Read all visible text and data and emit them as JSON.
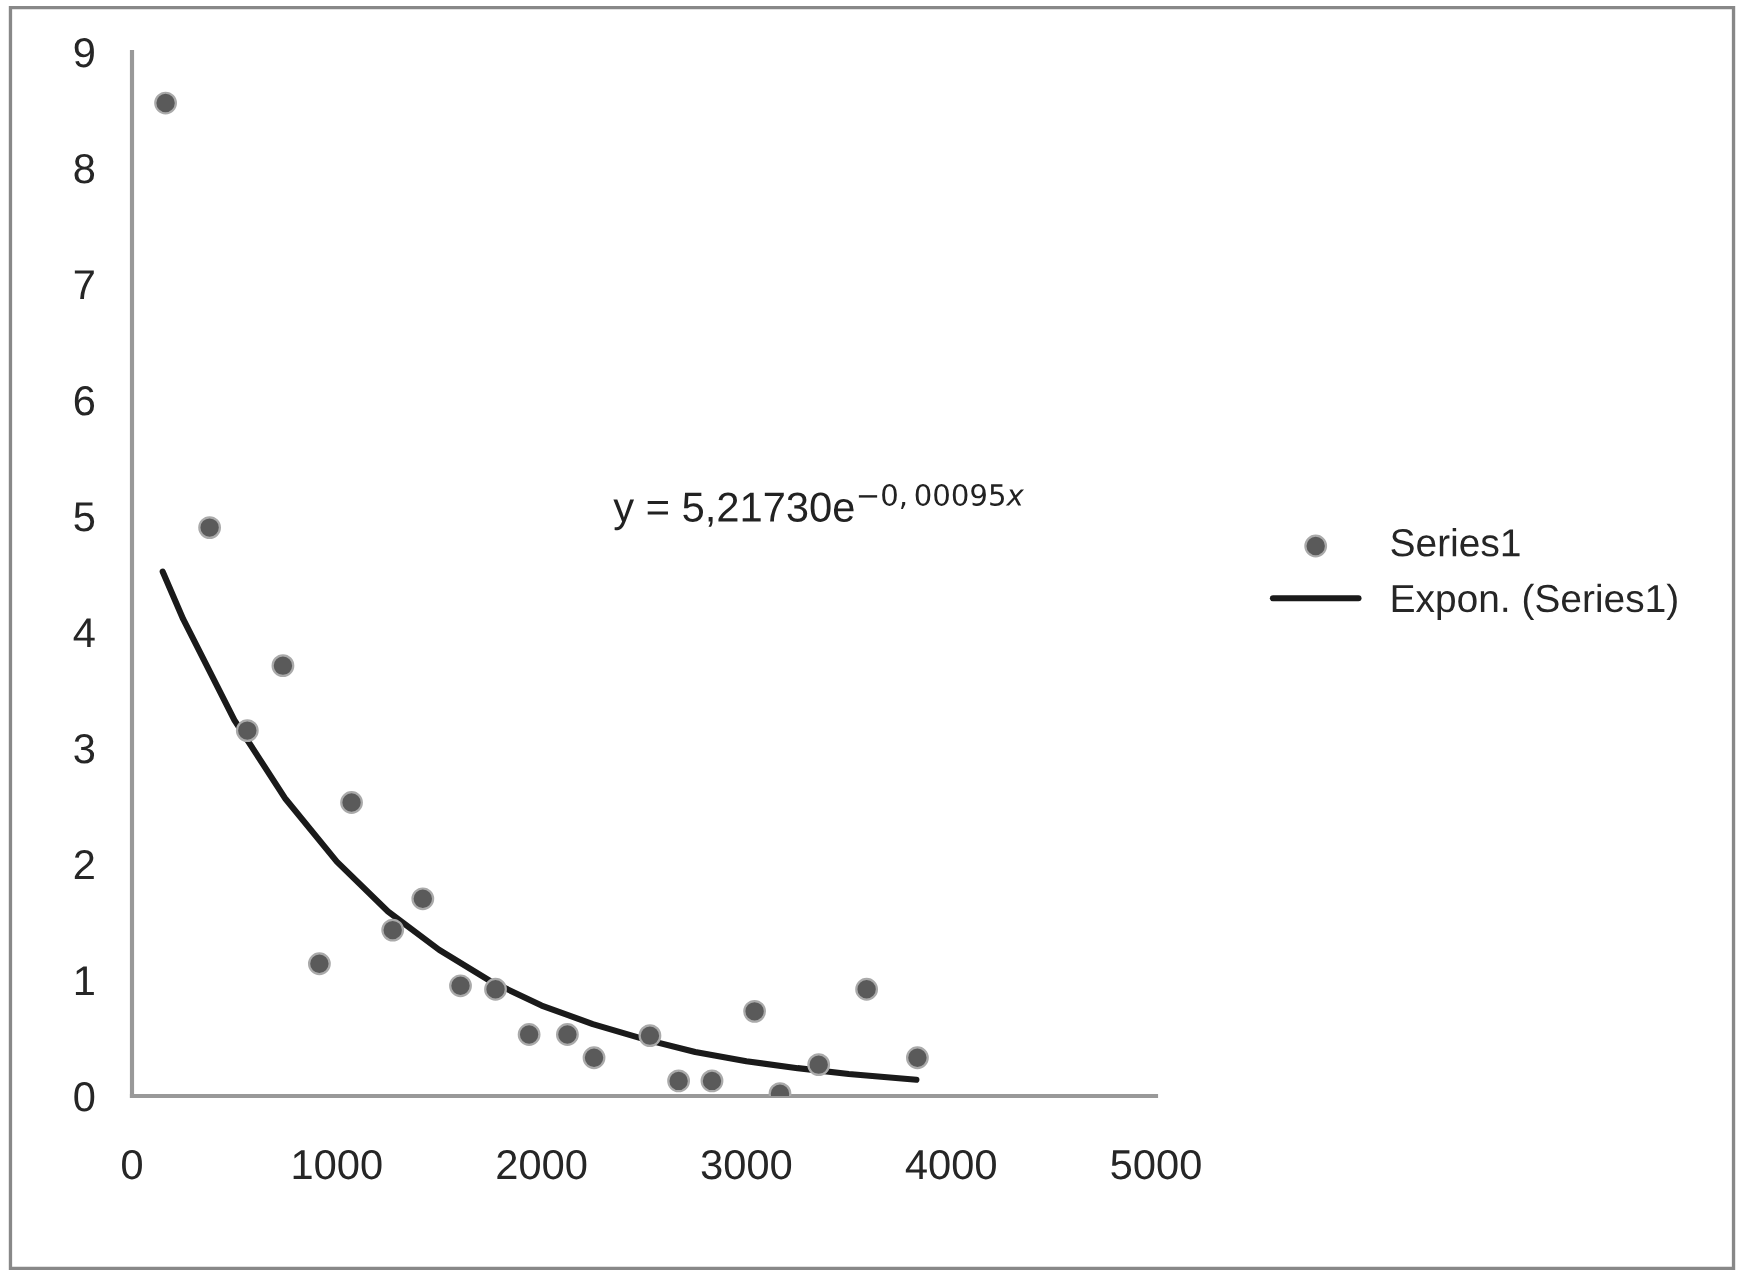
{
  "chart_data": {
    "type": "scatter",
    "series": [
      {
        "name": "Series1",
        "color": "#5a5a5a",
        "marker": "circle",
        "x": [
          164,
          379,
          563,
          737,
          915,
          1072,
          1273,
          1420,
          1604,
          1775,
          1939,
          2126,
          2256,
          2529,
          2669,
          2832,
          3040,
          3164,
          3353,
          3587,
          3835
        ],
        "values": [
          8.56,
          4.9,
          3.15,
          3.71,
          1.14,
          2.53,
          1.43,
          1.7,
          0.95,
          0.92,
          0.53,
          0.53,
          0.33,
          0.52,
          0.13,
          0.13,
          0.73,
          0.02,
          0.27,
          0.92,
          0.33
        ]
      },
      {
        "name": "Expon. (Series1)",
        "type": "line",
        "color": "#1a1a1a",
        "marker": "none",
        "line_style": "solid",
        "x": [
          150,
          250,
          500,
          750,
          1000,
          1250,
          1500,
          1750,
          2000,
          2250,
          2500,
          2750,
          3000,
          3250,
          3500,
          3830
        ],
        "values": [
          4.52,
          4.11,
          3.24,
          2.56,
          2.02,
          1.59,
          1.26,
          0.99,
          0.78,
          0.62,
          0.49,
          0.38,
          0.3,
          0.24,
          0.19,
          0.14
        ]
      }
    ],
    "xlim": [
      0,
      5000
    ],
    "xticks": [
      0,
      1000,
      2000,
      3000,
      4000,
      5000
    ],
    "ylim": [
      0,
      9
    ],
    "yticks": [
      0,
      1,
      2,
      3,
      4,
      5,
      6,
      7,
      8,
      9
    ],
    "grid": false,
    "legend": "right",
    "annotations": [
      "y = 5,21730e$^{−0,00095x}$"
    ]
  }
}
